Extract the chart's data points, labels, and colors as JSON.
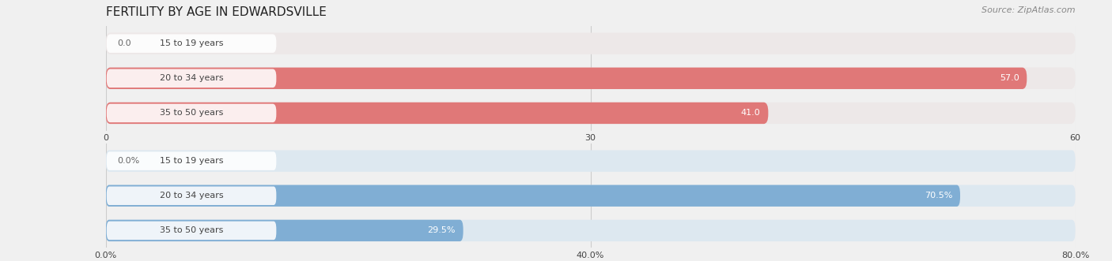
{
  "title": "FERTILITY BY AGE IN EDWARDSVILLE",
  "source": "Source: ZipAtlas.com",
  "top_chart": {
    "categories": [
      "15 to 19 years",
      "20 to 34 years",
      "35 to 50 years"
    ],
    "values": [
      0.0,
      57.0,
      41.0
    ],
    "bar_color": "#e07878",
    "bar_bg_color": "#ede8e8",
    "xlim": [
      0,
      60
    ],
    "xticks": [
      0.0,
      30.0,
      60.0
    ],
    "value_labels": [
      "0.0",
      "57.0",
      "41.0"
    ]
  },
  "bottom_chart": {
    "categories": [
      "15 to 19 years",
      "20 to 34 years",
      "35 to 50 years"
    ],
    "values": [
      0.0,
      70.5,
      29.5
    ],
    "bar_color": "#80aed4",
    "bar_bg_color": "#dde8f0",
    "xlim": [
      0,
      80
    ],
    "xticks": [
      0.0,
      40.0,
      80.0
    ],
    "xtick_labels": [
      "0.0%",
      "40.0%",
      "80.0%"
    ],
    "value_labels": [
      "0.0%",
      "70.5%",
      "29.5%"
    ]
  },
  "label_color": "#444444",
  "value_color_inside": "#ffffff",
  "value_color_outside": "#666666",
  "bg_color": "#f0f0f0",
  "bar_height": 0.62,
  "label_fontsize": 8.0,
  "value_fontsize": 8.0,
  "title_fontsize": 11,
  "source_fontsize": 8,
  "white_label_bg": "#ffffff"
}
